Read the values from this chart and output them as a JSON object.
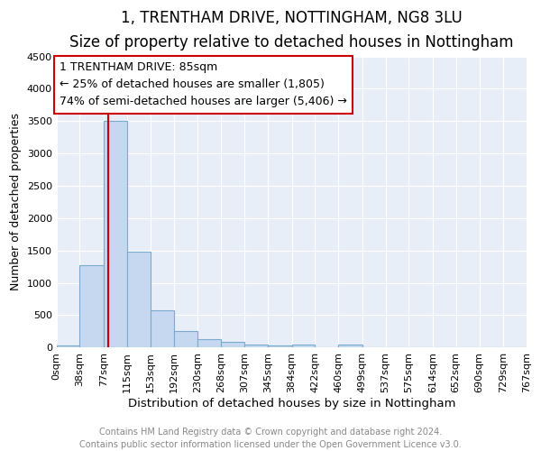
{
  "title": "1, TRENTHAM DRIVE, NOTTINGHAM, NG8 3LU",
  "subtitle": "Size of property relative to detached houses in Nottingham",
  "xlabel": "Distribution of detached houses by size in Nottingham",
  "ylabel": "Number of detached properties",
  "bar_color": "#c5d8f0",
  "bar_edge_color": "#7aabcf",
  "bar_values": [
    30,
    1280,
    3500,
    1480,
    570,
    250,
    130,
    90,
    50,
    30,
    40,
    0,
    50,
    0,
    0,
    0,
    0,
    0,
    0,
    0
  ],
  "bin_labels": [
    "0sqm",
    "38sqm",
    "77sqm",
    "115sqm",
    "153sqm",
    "192sqm",
    "230sqm",
    "268sqm",
    "307sqm",
    "345sqm",
    "384sqm",
    "422sqm",
    "460sqm",
    "499sqm",
    "537sqm",
    "575sqm",
    "614sqm",
    "652sqm",
    "690sqm",
    "729sqm",
    "767sqm"
  ],
  "bin_edges": [
    0,
    38,
    77,
    115,
    153,
    192,
    230,
    268,
    307,
    345,
    384,
    422,
    460,
    499,
    537,
    575,
    614,
    652,
    690,
    729,
    767
  ],
  "ylim": [
    0,
    4500
  ],
  "yticks": [
    0,
    500,
    1000,
    1500,
    2000,
    2500,
    3000,
    3500,
    4000,
    4500
  ],
  "property_line_x": 85,
  "property_line_color": "#cc0000",
  "annotation_line1": "1 TRENTHAM DRIVE: 85sqm",
  "annotation_line2": "← 25% of detached houses are smaller (1,805)",
  "annotation_line3": "74% of semi-detached houses are larger (5,406) →",
  "annotation_box_color": "#cc0000",
  "fig_background_color": "#ffffff",
  "plot_background_color": "#e8eef8",
  "grid_color": "#ffffff",
  "footer_text": "Contains HM Land Registry data © Crown copyright and database right 2024.\nContains public sector information licensed under the Open Government Licence v3.0.",
  "title_fontsize": 12,
  "subtitle_fontsize": 10,
  "xlabel_fontsize": 9.5,
  "ylabel_fontsize": 9,
  "tick_fontsize": 8,
  "annotation_fontsize": 9,
  "footer_fontsize": 7
}
